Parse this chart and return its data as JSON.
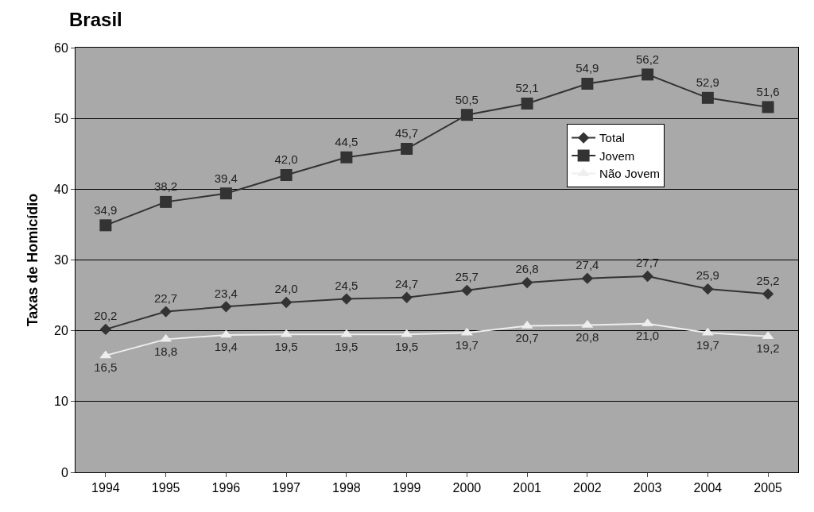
{
  "chart_data": {
    "type": "line",
    "title": "Brasil",
    "ylabel": "Taxas de Homicídio",
    "categories": [
      "1994",
      "1995",
      "1996",
      "1997",
      "1998",
      "1999",
      "2000",
      "2001",
      "2002",
      "2003",
      "2004",
      "2005"
    ],
    "series": [
      {
        "name": "Total",
        "color": "#333333",
        "marker": "diamond",
        "values": [
          20.2,
          22.7,
          23.4,
          24.0,
          24.5,
          24.7,
          25.7,
          26.8,
          27.4,
          27.7,
          25.9,
          25.2
        ],
        "value_labels": [
          "20,2",
          "22,7",
          "23,4",
          "24,0",
          "24,5",
          "24,7",
          "25,7",
          "26,8",
          "27,4",
          "27,7",
          "25,9",
          "25,2"
        ]
      },
      {
        "name": "Jovem",
        "color": "#333333",
        "marker": "square",
        "values": [
          34.9,
          38.2,
          39.4,
          42.0,
          44.5,
          45.7,
          50.5,
          52.1,
          54.9,
          56.2,
          52.9,
          51.6
        ],
        "value_labels": [
          "34,9",
          "38,2",
          "39,4",
          "42,0",
          "44,5",
          "45,7",
          "50,5",
          "52,1",
          "54,9",
          "56,2",
          "52,9",
          "51,6"
        ]
      },
      {
        "name": "Não Jovem",
        "color": "#eeeeee",
        "marker": "triangle",
        "values": [
          16.5,
          18.8,
          19.4,
          19.5,
          19.5,
          19.5,
          19.7,
          20.7,
          20.8,
          21.0,
          19.7,
          19.2
        ],
        "value_labels": [
          "16,5",
          "18,8",
          "19,4",
          "19,5",
          "19,5",
          "19,5",
          "19,7",
          "20,7",
          "20,8",
          "21,0",
          "19,7",
          "19,2"
        ]
      }
    ],
    "ylim": [
      0,
      60
    ],
    "yticks": [
      0,
      10,
      20,
      30,
      40,
      50,
      60
    ],
    "grid": "y",
    "legend": "right"
  }
}
